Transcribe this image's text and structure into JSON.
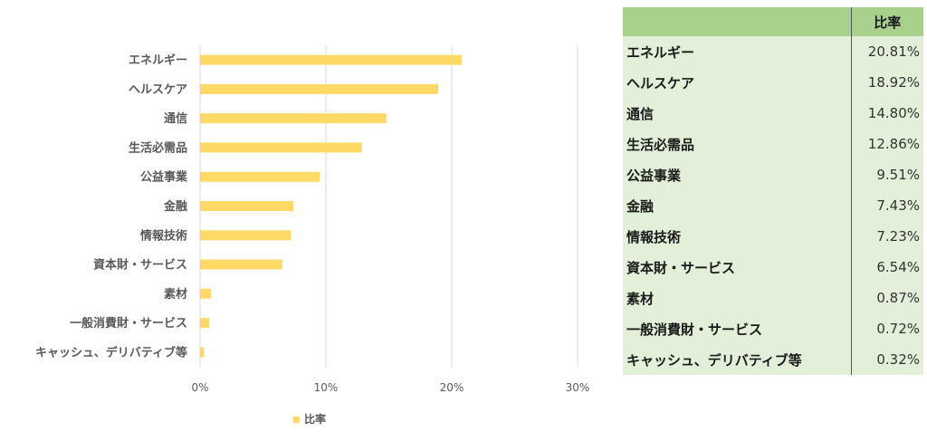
{
  "chart_data": {
    "type": "bar",
    "orientation": "horizontal",
    "categories": [
      "エネルギー",
      "ヘルスケア",
      "通信",
      "生活必需品",
      "公益事業",
      "金融",
      "情報技術",
      "資本財・サービス",
      "素材",
      "一般消費財・サービス",
      "キャッシュ、デリバティブ等"
    ],
    "series": [
      {
        "name": "比率",
        "values": [
          20.81,
          18.92,
          14.8,
          12.86,
          9.51,
          7.43,
          7.23,
          6.54,
          0.87,
          0.72,
          0.32
        ]
      }
    ],
    "xlim": [
      0,
      30
    ],
    "xticks": [
      0,
      10,
      20,
      30
    ],
    "xtick_labels": [
      "0%",
      "10%",
      "20%",
      "30%"
    ],
    "grid": "vertical",
    "legend": "bottom",
    "colors": {
      "bar": "#ffd966",
      "grid": "#d9d9d9"
    }
  },
  "table": {
    "header": {
      "name": "",
      "value": "比率"
    },
    "rows": [
      {
        "name": "エネルギー",
        "value": "20.81%"
      },
      {
        "name": "ヘルスケア",
        "value": "18.92%"
      },
      {
        "name": "通信",
        "value": "14.80%"
      },
      {
        "name": "生活必需品",
        "value": "12.86%"
      },
      {
        "name": "公益事業",
        "value": "9.51%"
      },
      {
        "name": "金融",
        "value": "7.43%"
      },
      {
        "name": "情報技術",
        "value": "7.23%"
      },
      {
        "name": "資本財・サービス",
        "value": "6.54%"
      },
      {
        "name": "素材",
        "value": "0.87%"
      },
      {
        "name": "一般消費財・サービス",
        "value": "0.72%"
      },
      {
        "name": "キャッシュ、デリバティブ等",
        "value": "0.32%"
      }
    ],
    "colors": {
      "header": "#a9d18e",
      "body": "#e2efd9"
    }
  }
}
